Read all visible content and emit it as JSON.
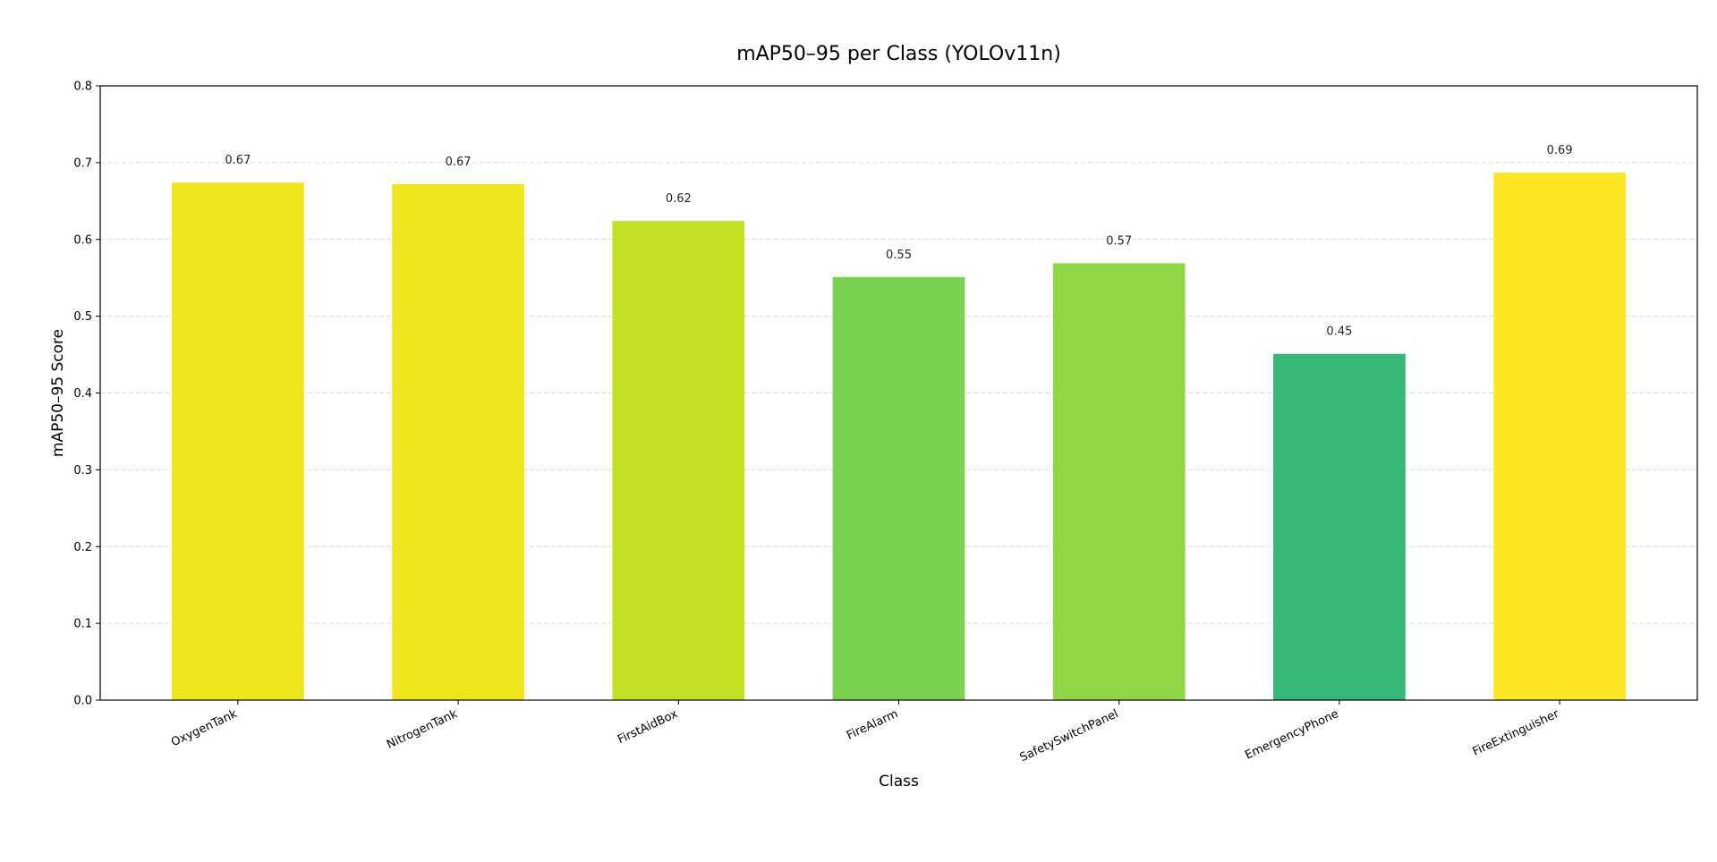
{
  "chart_data": {
    "type": "bar",
    "title": "mAP50–95 per Class (YOLOv11n)",
    "xlabel": "Class",
    "ylabel": "mAP50–95 Score",
    "ylim": [
      0,
      0.8
    ],
    "yticks": [
      "0.0",
      "0.1",
      "0.2",
      "0.3",
      "0.4",
      "0.5",
      "0.6",
      "0.7",
      "0.8"
    ],
    "grid": "y-dashed",
    "categories": [
      "OxygenTank",
      "NitrogenTank",
      "FirstAidBox",
      "FireAlarm",
      "SafetySwitchPanel",
      "EmergencyPhone",
      "FireExtinguisher"
    ],
    "values": [
      0.674,
      0.672,
      0.624,
      0.551,
      0.569,
      0.451,
      0.687
    ],
    "data_labels": [
      "0.67",
      "0.67",
      "0.62",
      "0.55",
      "0.57",
      "0.45",
      "0.69"
    ],
    "colors": [
      "#efe51c",
      "#efe51c",
      "#c2df23",
      "#7ad151",
      "#8fd744",
      "#35b779",
      "#fde725"
    ]
  }
}
